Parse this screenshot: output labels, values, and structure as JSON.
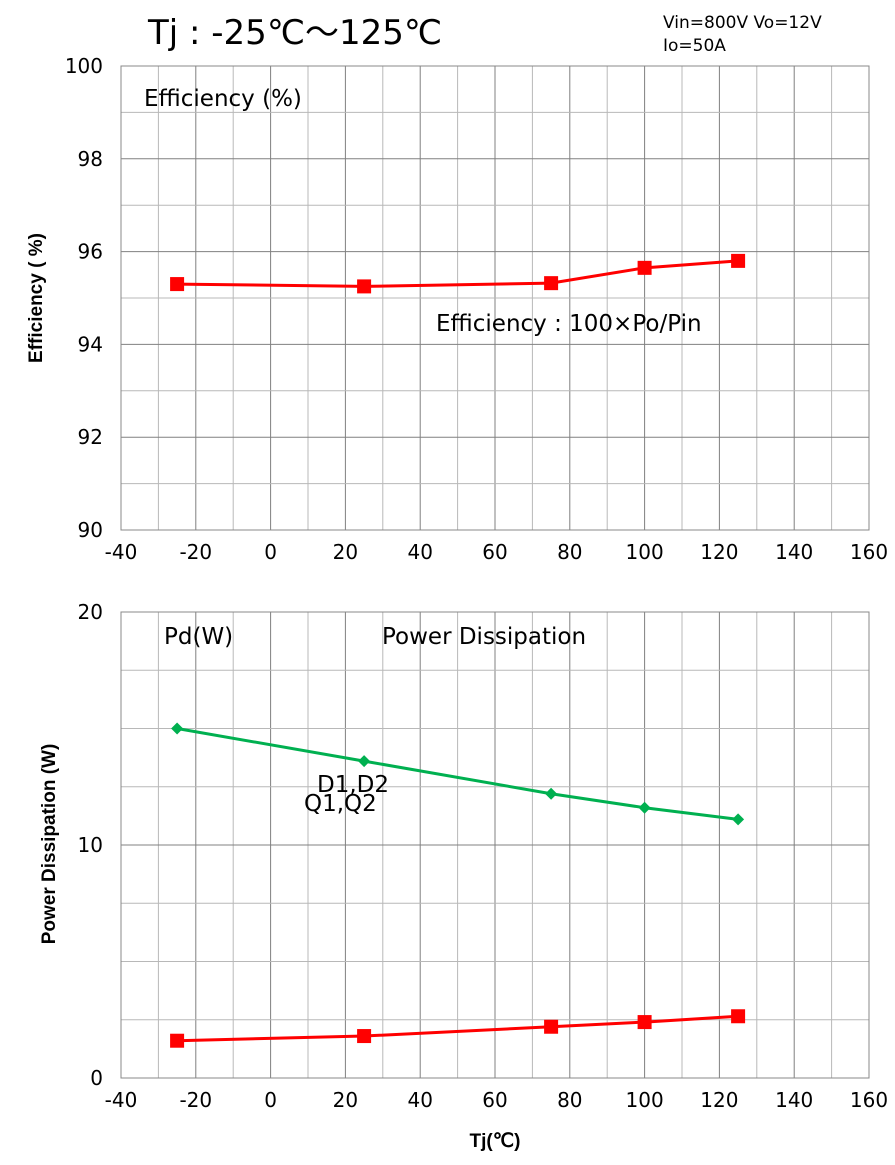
{
  "header": {
    "title": "Tj : -25℃～125℃",
    "conditions_line1": "Vin=800V Vo=12V",
    "conditions_line2": "Io=50A"
  },
  "colors": {
    "red": "#ff0000",
    "green": "#00b050",
    "grid": "#888888"
  },
  "chart_data": [
    {
      "type": "line",
      "ylabel": "Efficiency ( %)",
      "xlabel": "",
      "xlim": [
        -40,
        160
      ],
      "ylim": [
        90,
        100
      ],
      "xticks": [
        -40,
        -20,
        0,
        20,
        40,
        60,
        80,
        100,
        120,
        140,
        160
      ],
      "yticks": [
        90,
        92,
        94,
        96,
        98,
        100
      ],
      "grid": "on",
      "annotations": [
        "Efficiency (%)",
        "Efficiency : 100×Po/Pin"
      ],
      "series": [
        {
          "name": "",
          "color": "#ff0000",
          "marker": "square",
          "x": [
            -25,
            25,
            75,
            100,
            125
          ],
          "y": [
            95.3,
            95.25,
            95.32,
            95.65,
            95.8
          ]
        }
      ]
    },
    {
      "type": "line",
      "ylabel": "Power Dissipation (W)",
      "xlabel": "Tj(℃)",
      "xlim": [
        -40,
        160
      ],
      "ylim": [
        0,
        20
      ],
      "xticks": [
        -40,
        -20,
        0,
        20,
        40,
        60,
        80,
        100,
        120,
        140,
        160
      ],
      "yticks": [
        0,
        10,
        20
      ],
      "grid": "on",
      "annotations": [
        "Pd(W)",
        "Power Dissipation"
      ],
      "series": [
        {
          "name": "D1,D2",
          "color": "#00b050",
          "marker": "diamond",
          "x": [
            -25,
            25,
            75,
            100,
            125
          ],
          "y": [
            15.0,
            13.6,
            12.2,
            11.6,
            11.1
          ]
        },
        {
          "name": "Q1,Q2",
          "color": "#ff0000",
          "marker": "square",
          "x": [
            -25,
            25,
            75,
            100,
            125
          ],
          "y": [
            1.6,
            1.8,
            2.2,
            2.4,
            2.65
          ]
        }
      ]
    }
  ]
}
